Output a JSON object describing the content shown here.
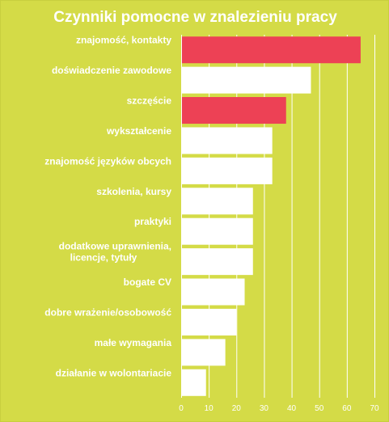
{
  "chart_data": {
    "type": "bar",
    "orientation": "horizontal",
    "title": "Czynniki pomocne w znalezieniu pracy",
    "categories": [
      "znajomość, kontakty",
      "doświadczenie zawodowe",
      "szczęście",
      "wykształcenie",
      "znajomość języków obcych",
      "szkolenia, kursy",
      "praktyki",
      "dodatkowe uprawnienia, licencje, tytuły",
      "bogate CV",
      "dobre wrażenie/osobowość",
      "małe wymagania",
      "działanie w wolontariacie"
    ],
    "values": [
      65,
      47,
      38,
      33,
      33,
      26,
      26,
      26,
      23,
      20,
      16,
      9
    ],
    "highlighted": [
      true,
      false,
      true,
      false,
      false,
      false,
      false,
      false,
      false,
      false,
      false,
      false
    ],
    "xlim": [
      0,
      70
    ],
    "xticks": [
      "0",
      "10",
      "20",
      "30",
      "40",
      "50",
      "60",
      "70"
    ],
    "grid": true,
    "colors": {
      "background": "#d4db47",
      "bar": "#ffffff",
      "highlight": "#ed4155",
      "grid": "#ffffff",
      "text": "#ffffff"
    }
  }
}
